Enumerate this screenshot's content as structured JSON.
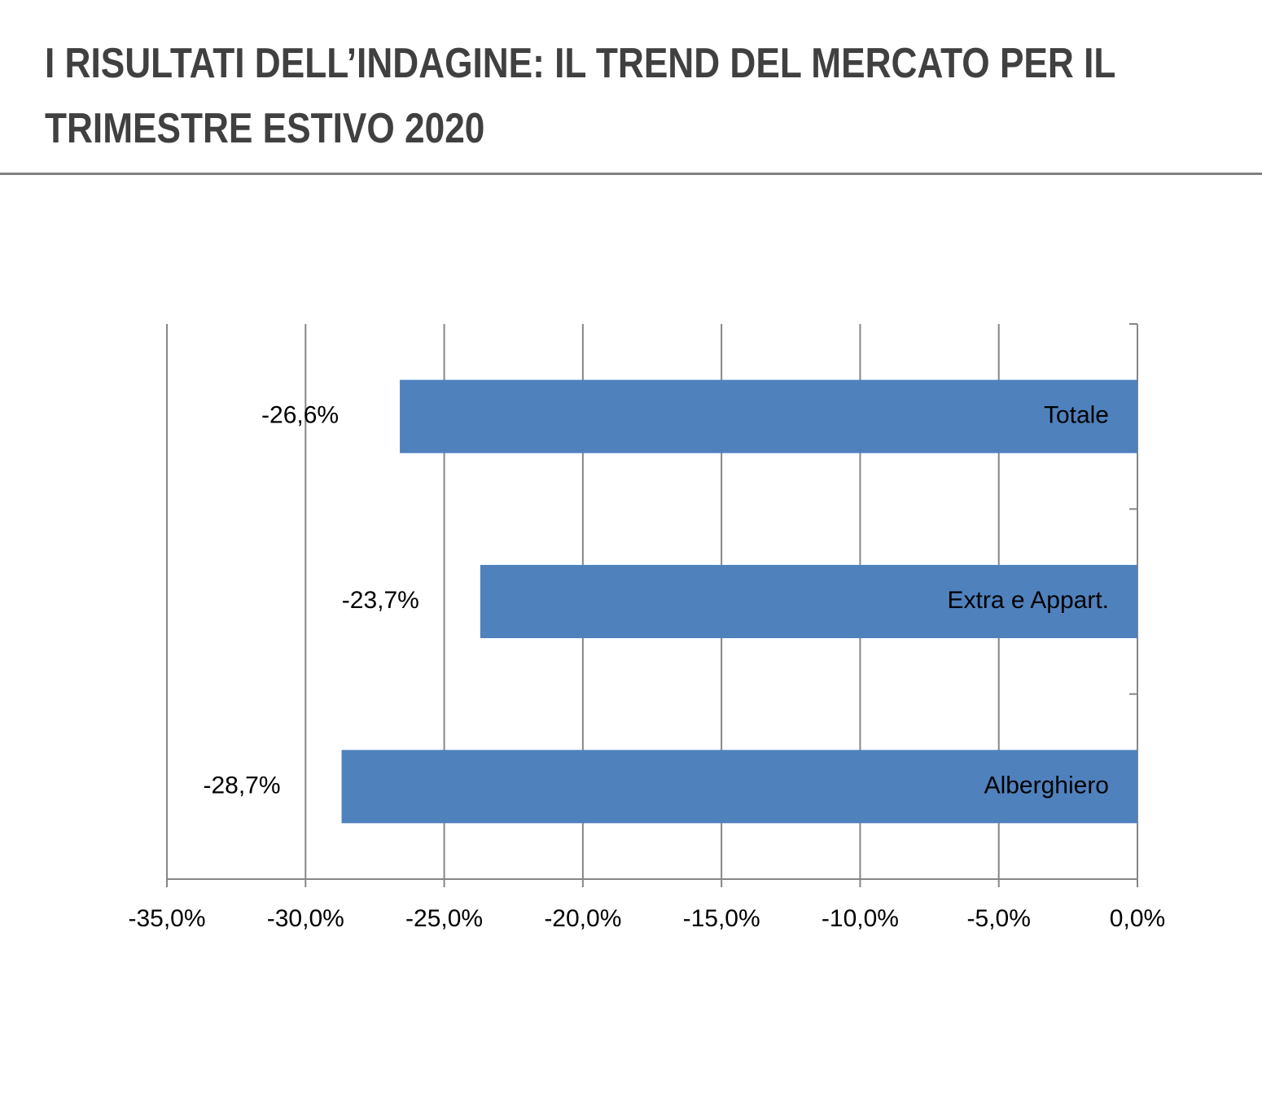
{
  "chart_data": {
    "type": "barh",
    "title": "I RISULTATI DELL’INDAGINE: IL TREND DEL MERCATO PER IL TRIMESTRE ESTIVO 2020",
    "categories": [
      "Totale",
      "Extra e Appart.",
      "Alberghiero"
    ],
    "values": [
      -26.6,
      -23.7,
      -28.7
    ],
    "value_labels": [
      "-26,6%",
      "-23,7%",
      "-28,7%"
    ],
    "color": "#4f81bd",
    "xlim": [
      -35,
      0
    ],
    "xticks": [
      {
        "value": -35,
        "label": "-35,0%"
      },
      {
        "value": -30,
        "label": "-30,0%"
      },
      {
        "value": -25,
        "label": "-25,0%"
      },
      {
        "value": -20,
        "label": "-20,0%"
      },
      {
        "value": -15,
        "label": "-15,0%"
      },
      {
        "value": -10,
        "label": "-10,0%"
      },
      {
        "value": -5,
        "label": "-5,0%"
      },
      {
        "value": 0,
        "label": "0,0%"
      }
    ],
    "grid": true
  }
}
